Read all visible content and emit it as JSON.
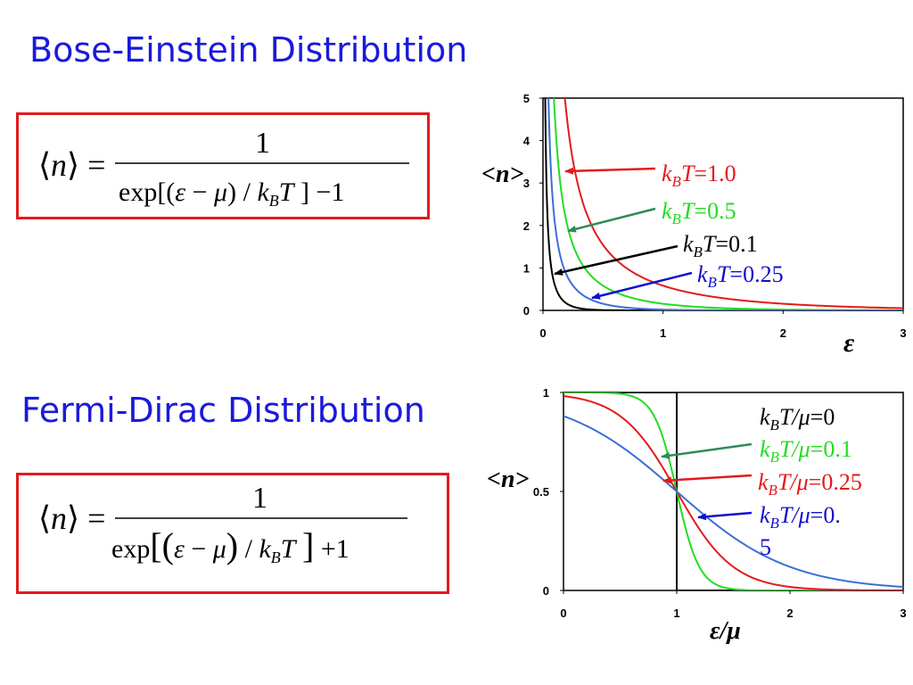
{
  "headings": {
    "bose": "Bose-Einstein Distribution",
    "fermi": "Fermi-Dirac Distribution"
  },
  "equations": {
    "bose": {
      "lhs": "⟨n⟩ =",
      "numerator": "1",
      "denominator": "exp[(ε − μ) / k_B T ] −1"
    },
    "fermi": {
      "lhs": "⟨n⟩ =",
      "numerator": "1",
      "denominator": "exp[(ε − μ) / k_B T ] +1"
    }
  },
  "colors": {
    "heading": "#1a1adc",
    "box": "#e41a1c",
    "kT_1_0": "#e41a1c",
    "kT_0_5": "#22dd22",
    "kT_0_1": "#000000",
    "kT_0_25": "#3a6fd8",
    "arrow_green": "#2e8b57",
    "legend_blue": "#1010cc"
  },
  "chart_data": [
    {
      "type": "line",
      "ylabel": "<n>",
      "xlabel": "ε",
      "xlim": [
        0,
        3
      ],
      "ylim": [
        0,
        5
      ],
      "xticks": [
        "0",
        "1",
        "2",
        "3"
      ],
      "yticks": [
        "0",
        "1",
        "2",
        "3",
        "4",
        "5"
      ],
      "function": "1/(exp(x/kT)-1)",
      "series": [
        {
          "name": "kBT=1.0",
          "kT": 1.0,
          "color": "#e41a1c",
          "label": {
            "prefix": "k",
            "sub": "B",
            "T": "T",
            "value": "=1.0"
          }
        },
        {
          "name": "kBT=0.5",
          "kT": 0.5,
          "color": "#22dd22",
          "label": {
            "prefix": "k",
            "sub": "B",
            "T": "T",
            "value": "=0.5"
          }
        },
        {
          "name": "kBT=0.1",
          "kT": 0.1,
          "color": "#000000",
          "label": {
            "prefix": "k",
            "sub": "B",
            "T": "T",
            "value": "=0.1"
          }
        },
        {
          "name": "kBT=0.25",
          "kT": 0.25,
          "color": "#3a6fd8",
          "label": {
            "prefix": "k",
            "sub": "B",
            "T": "T",
            "value": "=0.25"
          }
        }
      ]
    },
    {
      "type": "line",
      "ylabel": "<n>",
      "xlabel": "ε/μ",
      "xlim": [
        0,
        3
      ],
      "ylim": [
        0,
        1
      ],
      "xticks": [
        "0",
        "1",
        "2",
        "3"
      ],
      "yticks": [
        "0",
        "0.5",
        "1"
      ],
      "function": "1/(exp((x-1)/kT)+1)",
      "series": [
        {
          "name": "kBT/μ=0",
          "kT": 0,
          "color": "#000000",
          "label": {
            "prefix": "k",
            "sub": "B",
            "T": "T/μ",
            "value": "=0"
          }
        },
        {
          "name": "kBT/μ=0.1",
          "kT": 0.1,
          "color": "#22dd22",
          "label": {
            "prefix": "k",
            "sub": "B",
            "T": "T/μ",
            "value": "=0.1"
          }
        },
        {
          "name": "kBT/μ=0.25",
          "kT": 0.25,
          "color": "#e41a1c",
          "label": {
            "prefix": "k",
            "sub": "B",
            "T": "T/μ",
            "value": "=0.25"
          }
        },
        {
          "name": "kBT/μ=0.5",
          "kT": 0.5,
          "color": "#3a6fd8",
          "label": {
            "prefix": "k",
            "sub": "B",
            "T": "T/μ",
            "value": "=0.",
            "wrap": "5"
          }
        }
      ]
    }
  ]
}
